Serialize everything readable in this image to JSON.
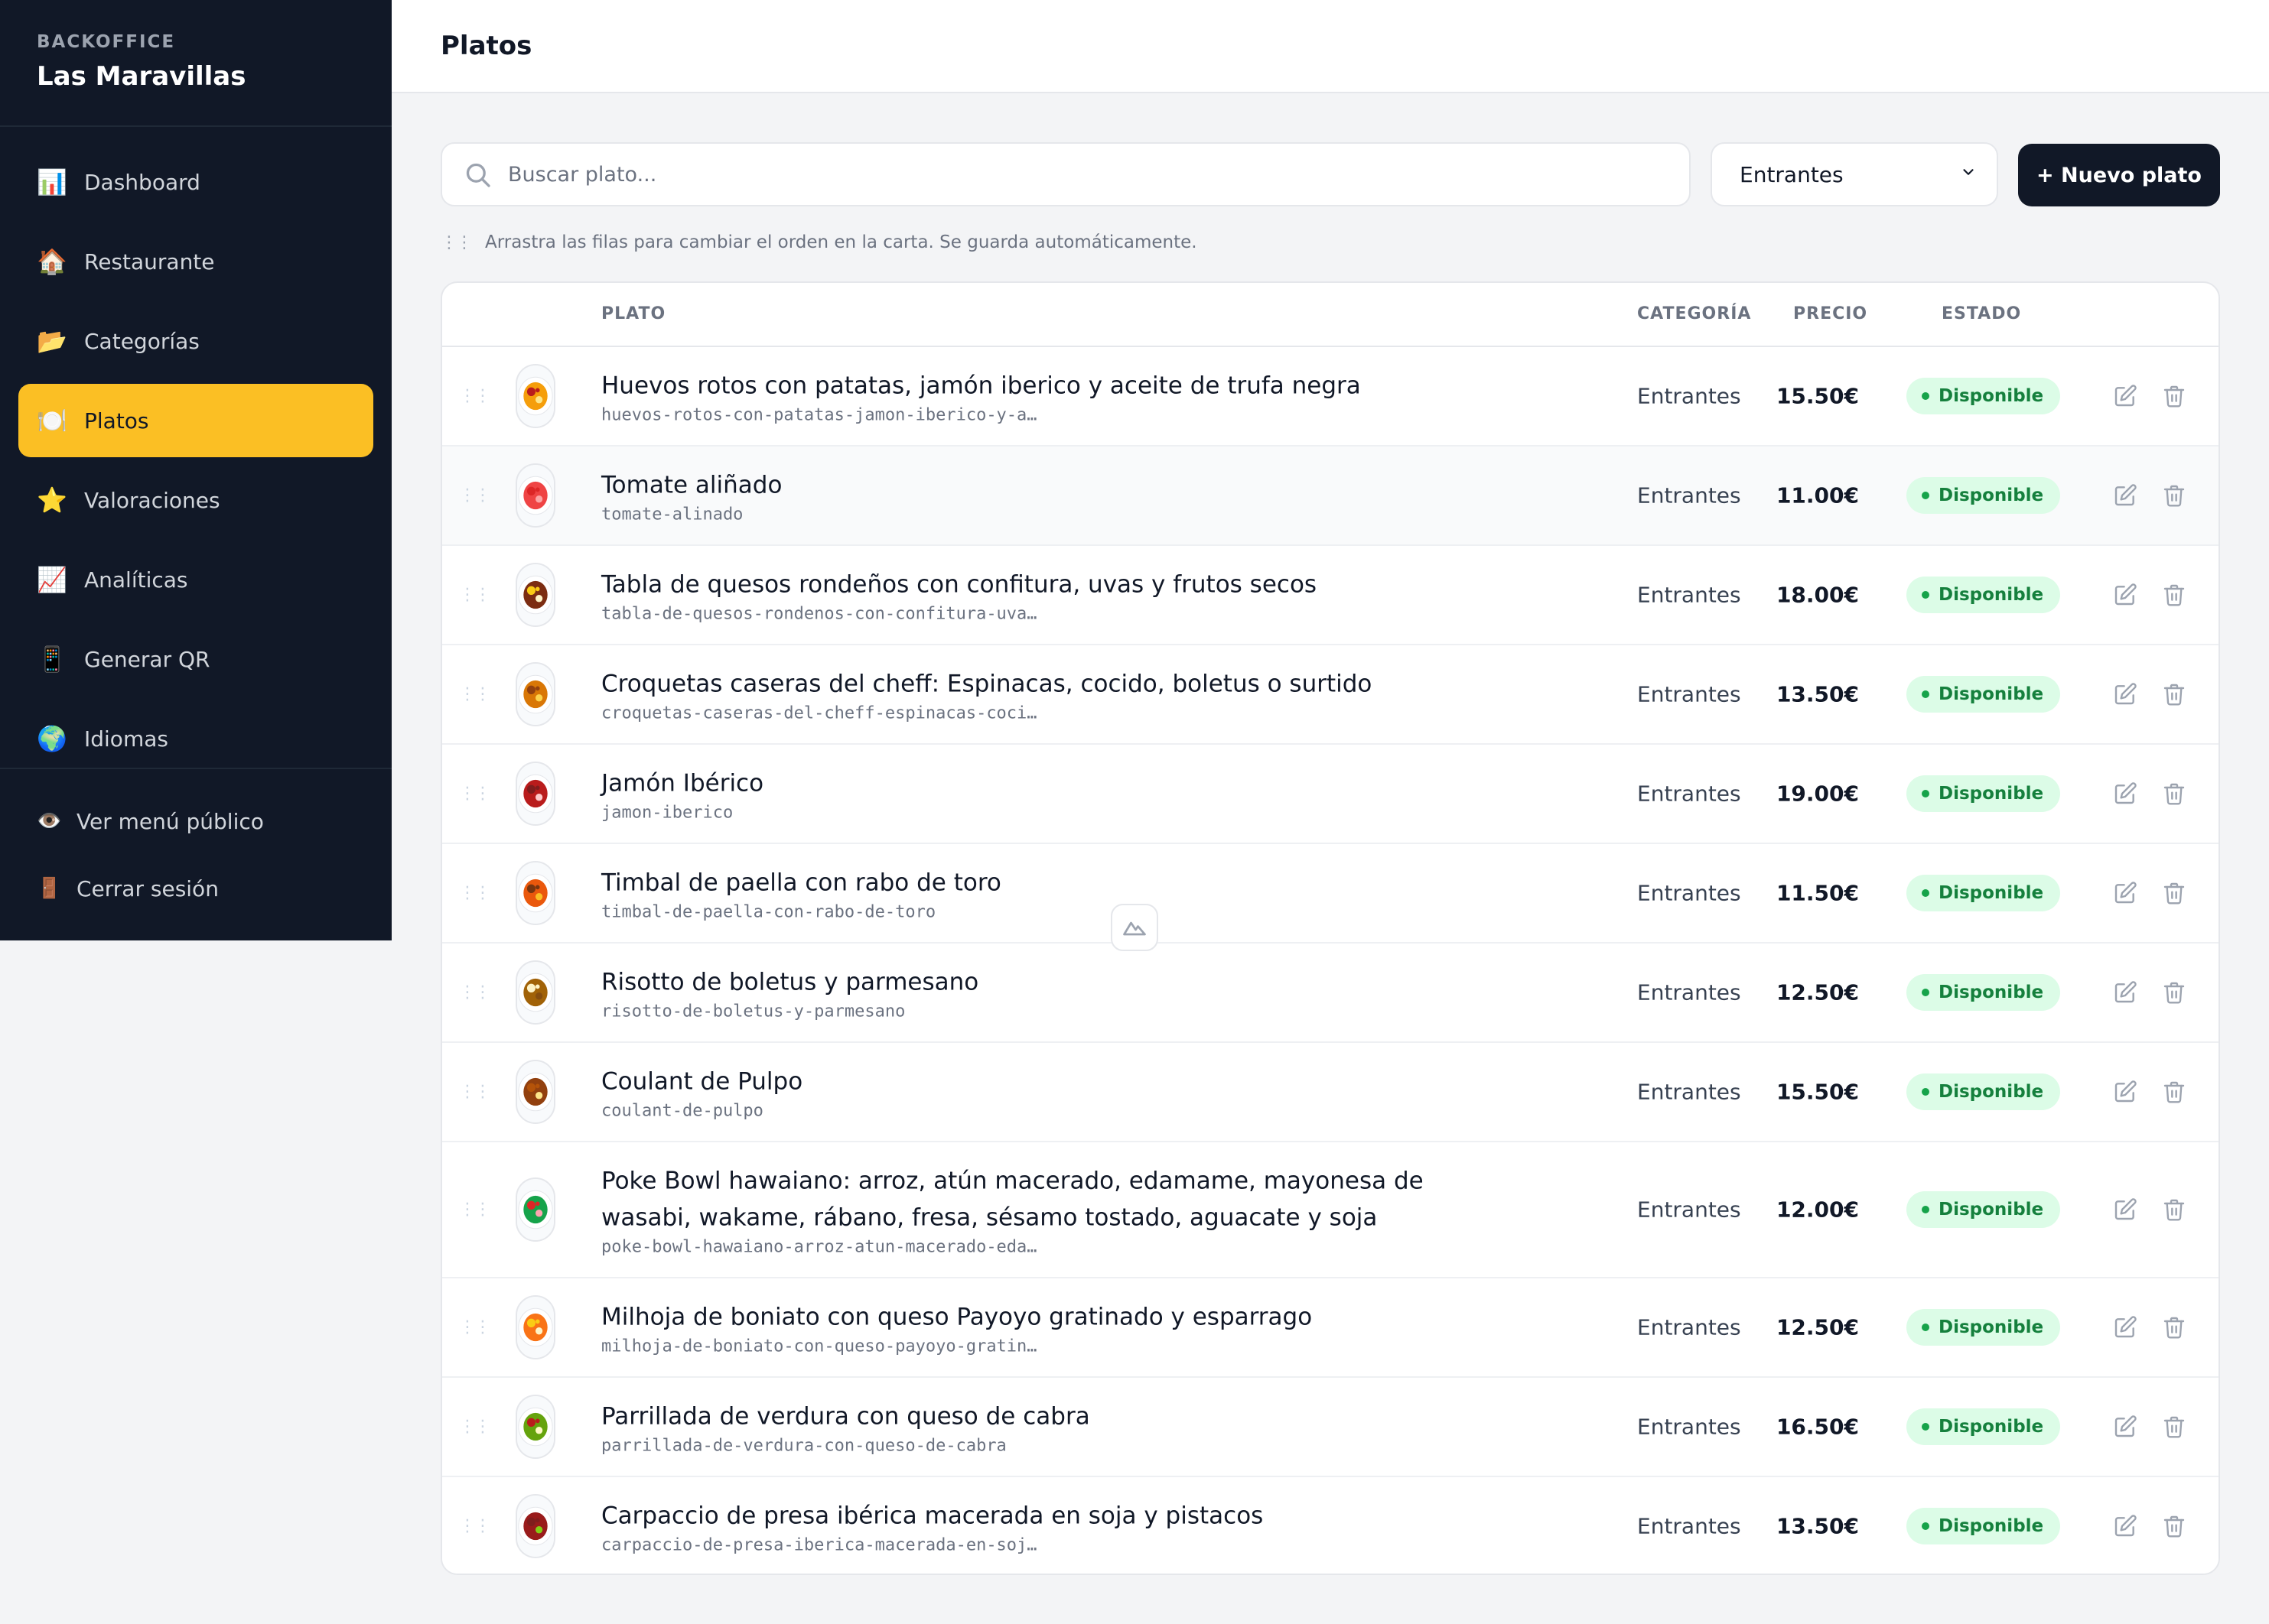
{
  "sidebar": {
    "eyebrow": "BACKOFFICE",
    "title": "Las Maravillas",
    "items": [
      {
        "label": "Dashboard",
        "icon": "📊",
        "name": "dashboard"
      },
      {
        "label": "Restaurante",
        "icon": "🏠",
        "name": "restaurante"
      },
      {
        "label": "Categorías",
        "icon": "📂",
        "name": "categorias"
      },
      {
        "label": "Platos",
        "icon": "🍽️",
        "name": "platos",
        "active": true
      },
      {
        "label": "Valoraciones",
        "icon": "⭐",
        "name": "valoraciones"
      },
      {
        "label": "Analíticas",
        "icon": "📈",
        "name": "analiticas"
      },
      {
        "label": "Generar QR",
        "icon": "📱",
        "name": "generar-qr"
      },
      {
        "label": "Idiomas",
        "icon": "🌍",
        "name": "idiomas"
      }
    ],
    "bottom": [
      {
        "label": "Ver menú público",
        "icon": "👁️",
        "name": "ver-menu-publico"
      },
      {
        "label": "Cerrar sesión",
        "icon": "🚪",
        "name": "cerrar-sesion"
      }
    ]
  },
  "header": {
    "title": "Platos"
  },
  "toolbar": {
    "search_placeholder": "Buscar plato...",
    "category_selected": "Entrantes",
    "new_button": "+ Nuevo plato",
    "hint": "Arrastra las filas para cambiar el orden en la carta. Se guarda automáticamente."
  },
  "table": {
    "headers": {
      "plato": "PLATO",
      "categoria": "CATEGORÍA",
      "precio": "PRECIO",
      "estado": "ESTADO"
    },
    "rows": [
      {
        "name": "Huevos rotos con patatas, jamón iberico y aceite de trufa negra",
        "slug": "huevos-rotos-con-patatas-jamon-iberico-y-a…",
        "category": "Entrantes",
        "price": "15.50€",
        "status": "Disponible"
      },
      {
        "name": "Tomate aliñado",
        "slug": "tomate-alinado",
        "category": "Entrantes",
        "price": "11.00€",
        "status": "Disponible"
      },
      {
        "name": "Tabla de quesos rondeños con confitura, uvas y frutos secos",
        "slug": "tabla-de-quesos-rondenos-con-confitura-uva…",
        "category": "Entrantes",
        "price": "18.00€",
        "status": "Disponible"
      },
      {
        "name": "Croquetas caseras del cheff: Espinacas, cocido, boletus o surtido",
        "slug": "croquetas-caseras-del-cheff-espinacas-coci…",
        "category": "Entrantes",
        "price": "13.50€",
        "status": "Disponible"
      },
      {
        "name": "Jamón Ibérico",
        "slug": "jamon-iberico",
        "category": "Entrantes",
        "price": "19.00€",
        "status": "Disponible"
      },
      {
        "name": "Timbal de paella con rabo de toro",
        "slug": "timbal-de-paella-con-rabo-de-toro",
        "category": "Entrantes",
        "price": "11.50€",
        "status": "Disponible"
      },
      {
        "name": "Risotto de boletus y parmesano",
        "slug": "risotto-de-boletus-y-parmesano",
        "category": "Entrantes",
        "price": "12.50€",
        "status": "Disponible"
      },
      {
        "name": "Coulant de Pulpo",
        "slug": "coulant-de-pulpo",
        "category": "Entrantes",
        "price": "15.50€",
        "status": "Disponible"
      },
      {
        "name": "Poke Bowl hawaiano: arroz, atún macerado, edamame, mayonesa de wasabi, wakame, rábano, fresa, sésamo tostado, aguacate y soja",
        "slug": "poke-bowl-hawaiano-arroz-atun-macerado-eda…",
        "category": "Entrantes",
        "price": "12.00€",
        "status": "Disponible"
      },
      {
        "name": "Milhoja de boniato con queso Payoyo gratinado y esparrago",
        "slug": "milhoja-de-boniato-con-queso-payoyo-gratin…",
        "category": "Entrantes",
        "price": "12.50€",
        "status": "Disponible"
      },
      {
        "name": "Parrillada de verdura con queso de cabra",
        "slug": "parrillada-de-verdura-con-queso-de-cabra",
        "category": "Entrantes",
        "price": "16.50€",
        "status": "Disponible"
      },
      {
        "name": "Carpaccio de presa ibérica macerada en soja y pistacos",
        "slug": "carpaccio-de-presa-iberica-macerada-en-soj…",
        "category": "Entrantes",
        "price": "13.50€",
        "status": "Disponible"
      }
    ]
  },
  "colors": {
    "sidebar_bg": "#111827",
    "accent": "#fbbf24",
    "badge_bg": "#dcfce7",
    "badge_text": "#15803d"
  }
}
